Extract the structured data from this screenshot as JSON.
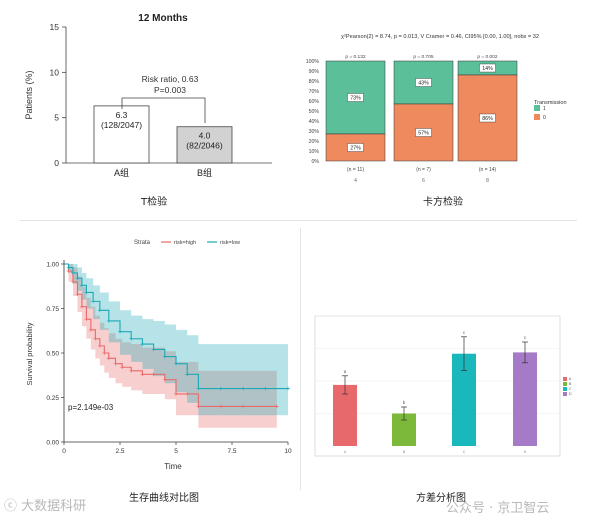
{
  "captions": {
    "ttest": "T检验",
    "chisq": "卡方检验",
    "km": "生存曲线对比图",
    "anova": "方差分析图"
  },
  "watermarks": {
    "left": "大数据科研",
    "right": "公众号 · 京卫智云"
  },
  "colors": {
    "km_high": "#e8696b",
    "km_low": "#1ba9b5",
    "chisq_1": "#5bbf9a",
    "chisq_0": "#ee8a5e",
    "anova": [
      "#e8696b",
      "#7cb83a",
      "#1ab8bd",
      "#a57ac6"
    ]
  },
  "chart_data": [
    {
      "type": "bar",
      "title": "12 Months",
      "ylabel": "Patients (%)",
      "xlabel": "",
      "ylim": [
        0,
        15
      ],
      "yticks": [
        "0",
        "5",
        "10",
        "15"
      ],
      "categories": [
        "A组",
        "B组"
      ],
      "values": [
        6.3,
        4.0
      ],
      "data_labels": [
        [
          "6.3",
          "(128/2047)"
        ],
        [
          "4.0",
          "(82/2046)"
        ]
      ],
      "annotation": [
        "Risk ratio, 0.63",
        "P=0.003"
      ]
    },
    {
      "type": "bar",
      "stacked": true,
      "subtitle": "χ²Pearson(2) = 8.74, p = 0.013, V Cramer = 0.46, CI95% [0.00, 1.00], nobs = 32",
      "ylim": [
        0,
        100
      ],
      "yticks": [
        "0%",
        "10%",
        "20%",
        "30%",
        "40%",
        "50%",
        "60%",
        "70%",
        "80%",
        "90%",
        "100%"
      ],
      "categories": [
        "4",
        "6",
        "8"
      ],
      "category_counts": [
        "(n = 11)",
        "(n = 7)",
        "(n = 14)"
      ],
      "category_p_labels": [
        "p = 0.132",
        "p = 0.705",
        "p = 0.002"
      ],
      "legend_title": "Transmission",
      "legend_position": "right",
      "series": [
        {
          "name": "1",
          "values": [
            73,
            43,
            14
          ],
          "labels": [
            "73%",
            "43%",
            "14%"
          ]
        },
        {
          "name": "0",
          "values": [
            27,
            57,
            86
          ],
          "labels": [
            "27%",
            "57%",
            "86%"
          ]
        }
      ]
    },
    {
      "type": "line",
      "subtype": "kaplan-meier",
      "xlabel": "Time",
      "ylabel": "Survival probability",
      "xlim": [
        0,
        10
      ],
      "ylim": [
        0,
        1
      ],
      "xticks": [
        "0",
        "2.5",
        "5",
        "7.5",
        "10"
      ],
      "yticks": [
        "0.00",
        "0.25",
        "0.50",
        "0.75",
        "1.00"
      ],
      "legend_title": "Strata",
      "legend_position": "top",
      "pvalue_label": "p=2.149e-03",
      "series": [
        {
          "name": "risk=high",
          "x": [
            0,
            0.2,
            0.4,
            0.6,
            0.8,
            1.0,
            1.2,
            1.4,
            1.6,
            1.8,
            2.0,
            2.3,
            2.6,
            3.0,
            3.5,
            4.0,
            4.5,
            5.0,
            5.5,
            6.0,
            7.0,
            8.0,
            9.5
          ],
          "y": [
            1.0,
            0.96,
            0.9,
            0.83,
            0.76,
            0.69,
            0.63,
            0.58,
            0.54,
            0.5,
            0.47,
            0.44,
            0.42,
            0.4,
            0.38,
            0.38,
            0.35,
            0.27,
            0.27,
            0.2,
            0.2,
            0.2,
            0.2
          ],
          "ci_upper": [
            1.0,
            1.0,
            0.98,
            0.93,
            0.87,
            0.81,
            0.76,
            0.71,
            0.67,
            0.64,
            0.61,
            0.58,
            0.56,
            0.55,
            0.53,
            0.53,
            0.51,
            0.45,
            0.45,
            0.4,
            0.4,
            0.4,
            0.4
          ],
          "ci_lower": [
            1.0,
            0.9,
            0.82,
            0.73,
            0.65,
            0.58,
            0.52,
            0.47,
            0.43,
            0.39,
            0.36,
            0.33,
            0.31,
            0.29,
            0.27,
            0.27,
            0.24,
            0.15,
            0.15,
            0.08,
            0.08,
            0.08,
            0.08
          ]
        },
        {
          "name": "risk=low",
          "x": [
            0,
            0.2,
            0.4,
            0.6,
            0.8,
            1.0,
            1.3,
            1.6,
            2.0,
            2.5,
            3.0,
            3.5,
            4.0,
            4.5,
            5.0,
            5.5,
            6.0,
            7.0,
            8.0,
            9.0,
            10.0
          ],
          "y": [
            1.0,
            0.98,
            0.95,
            0.92,
            0.88,
            0.84,
            0.79,
            0.74,
            0.68,
            0.62,
            0.58,
            0.55,
            0.52,
            0.48,
            0.44,
            0.38,
            0.3,
            0.3,
            0.3,
            0.3,
            0.3
          ],
          "ci_upper": [
            1.0,
            1.0,
            1.0,
            0.98,
            0.95,
            0.92,
            0.88,
            0.84,
            0.79,
            0.74,
            0.71,
            0.69,
            0.68,
            0.66,
            0.63,
            0.6,
            0.55,
            0.55,
            0.55,
            0.55,
            0.55
          ],
          "ci_lower": [
            1.0,
            0.95,
            0.89,
            0.85,
            0.8,
            0.75,
            0.69,
            0.63,
            0.56,
            0.49,
            0.45,
            0.41,
            0.37,
            0.33,
            0.28,
            0.22,
            0.15,
            0.15,
            0.15,
            0.15,
            0.15
          ]
        }
      ]
    },
    {
      "type": "bar",
      "subtype": "bar-with-error",
      "xlabel": "",
      "ylabel": "",
      "legend_position": "right",
      "ylim": [
        0,
        100
      ],
      "categories": [
        "A",
        "B",
        "C",
        "D"
      ],
      "values": [
        47,
        25,
        71,
        72
      ],
      "errors": [
        7,
        5,
        13,
        8
      ],
      "significance": [
        "a",
        "b",
        "c",
        "c"
      ]
    }
  ]
}
